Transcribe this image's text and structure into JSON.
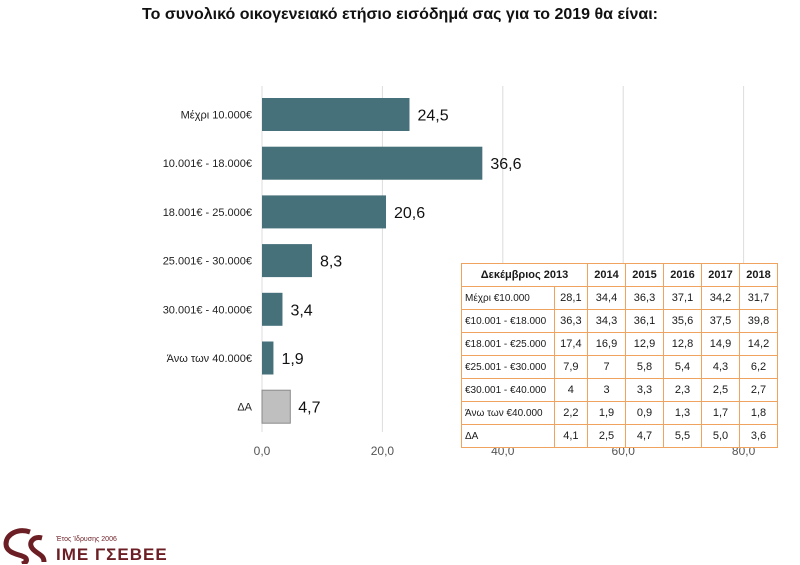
{
  "chart_data": {
    "type": "bar",
    "orientation": "horizontal",
    "title": "Το συνολικό οικογενειακό ετήσιο εισόδημά σας για το 2019 θα είναι:",
    "categories": [
      "Μέχρι 10.000€",
      "10.001€ - 18.000€",
      "18.001€ - 25.000€",
      "25.001€ - 30.000€",
      "30.001€ - 40.000€",
      "Άνω των 40.000€",
      "ΔΑ"
    ],
    "values": [
      24.5,
      36.6,
      20.6,
      8.3,
      3.4,
      1.9,
      4.7
    ],
    "value_labels": [
      "24,5",
      "36,6",
      "20,6",
      "8,3",
      "3,4",
      "1,9",
      "4,7"
    ],
    "xlim": [
      0,
      80
    ],
    "xticks": [
      0,
      20,
      40,
      60,
      80
    ],
    "xtick_labels": [
      "0,0",
      "20,0",
      "40,0",
      "60,0",
      "80,0"
    ],
    "grid": true,
    "bar_color": "#46707a",
    "highlight_bar": {
      "category": "ΔΑ",
      "color": "#bfbfbf"
    }
  },
  "history_table": {
    "headers": [
      "Δεκέμβριος 2013",
      "2014",
      "2015",
      "2016",
      "2017",
      "2018"
    ],
    "rows": [
      {
        "label": "Μέχρι €10.000",
        "values": [
          "28,1",
          "34,4",
          "36,3",
          "37,1",
          "34,2",
          "31,7"
        ]
      },
      {
        "label": "€10.001 - €18.000",
        "values": [
          "36,3",
          "34,3",
          "36,1",
          "35,6",
          "37,5",
          "39,8"
        ]
      },
      {
        "label": "€18.001 - €25.000",
        "values": [
          "17,4",
          "16,9",
          "12,9",
          "12,8",
          "14,9",
          "14,2"
        ]
      },
      {
        "label": "€25.001 - €30.000",
        "values": [
          "7,9",
          "7",
          "5,8",
          "5,4",
          "4,3",
          "6,2"
        ]
      },
      {
        "label": "€30.001 - €40.000",
        "values": [
          "4",
          "3",
          "3,3",
          "2,3",
          "2,5",
          "2,7"
        ]
      },
      {
        "label": "Άνω των €40.000",
        "values": [
          "2,2",
          "1,9",
          "0,9",
          "1,3",
          "1,7",
          "1,8"
        ]
      },
      {
        "label": "ΔΑ",
        "values": [
          "4,1",
          "2,5",
          "4,7",
          "5,5",
          "5,0",
          "3,6"
        ]
      }
    ],
    "border_color": "#f0a35e"
  },
  "logo": {
    "tagline": "Έτος Ίδρυσης 2006",
    "name": "ΙΜΕ ΓΣΕΒΕΕ",
    "color": "#6b1e24"
  }
}
